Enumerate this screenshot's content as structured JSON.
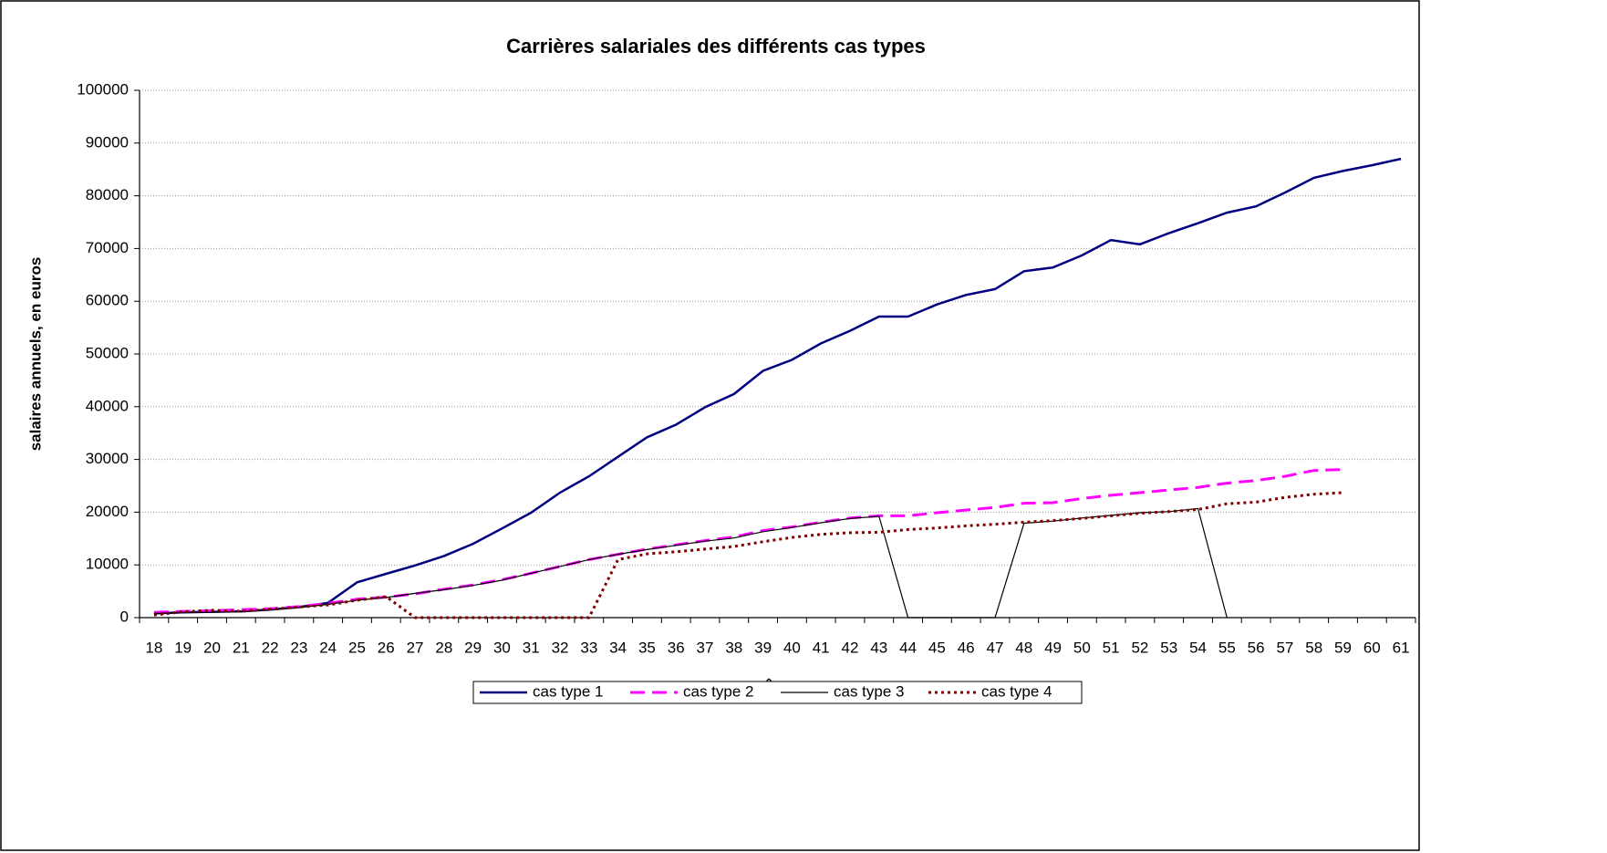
{
  "chart_data": {
    "type": "line",
    "title": "Carrières salariales des différents cas types",
    "xlabel": "âge",
    "ylabel": "salaires annuels, en euros",
    "categories": [
      18,
      19,
      20,
      21,
      22,
      23,
      24,
      25,
      26,
      27,
      28,
      29,
      30,
      31,
      32,
      33,
      34,
      35,
      36,
      37,
      38,
      39,
      40,
      41,
      42,
      43,
      44,
      45,
      46,
      47,
      48,
      49,
      50,
      51,
      52,
      53,
      54,
      55,
      56,
      57,
      58,
      59,
      60,
      61
    ],
    "series": [
      {
        "name": "cas type 1",
        "color": "#000080",
        "style": "solid",
        "width": 2.5,
        "values": [
          800,
          1000,
          1100,
          1200,
          1500,
          2000,
          2800,
          6700,
          8300,
          9900,
          11700,
          14000,
          16900,
          19900,
          23700,
          26800,
          30500,
          34200,
          36600,
          39900,
          42400,
          46800,
          48900,
          52000,
          54400,
          57100,
          57100,
          59400,
          61200,
          62300,
          65700,
          66400,
          68700,
          71600,
          70800,
          72900,
          74800,
          76800,
          78000,
          80600,
          83400,
          84700,
          85800,
          87000
        ]
      },
      {
        "name": "cas type 2",
        "color": "#ff00ff",
        "style": "dashed",
        "width": 3,
        "values": [
          1000,
          1200,
          1300,
          1500,
          1700,
          2100,
          2700,
          3500,
          3900,
          4500,
          5400,
          6200,
          7200,
          8400,
          9700,
          11000,
          12000,
          13000,
          13800,
          14600,
          15300,
          16500,
          17200,
          18100,
          18900,
          19300,
          19300,
          19900,
          20400,
          20900,
          21700,
          21800,
          22600,
          23200,
          23700,
          24200,
          24700,
          25500,
          26000,
          26800,
          27900,
          28100,
          null,
          null
        ]
      },
      {
        "name": "cas type 3",
        "color": "#000000",
        "style": "solid",
        "width": 1.2,
        "values": [
          800,
          1000,
          1000,
          1100,
          1500,
          1900,
          2500,
          3300,
          3800,
          4600,
          5300,
          6100,
          7100,
          8400,
          9700,
          11000,
          12000,
          12900,
          13700,
          14500,
          15100,
          16300,
          17100,
          18000,
          18800,
          19200,
          0,
          0,
          0,
          0,
          17900,
          18300,
          18900,
          19400,
          19900,
          20100,
          20700,
          0,
          null,
          null,
          null,
          null,
          null,
          null
        ]
      },
      {
        "name": "cas type 4",
        "color": "#800000",
        "style": "dotted",
        "width": 3,
        "values": [
          500,
          1100,
          1400,
          1200,
          1600,
          2000,
          2400,
          3300,
          4000,
          0,
          0,
          0,
          0,
          0,
          0,
          0,
          11000,
          12100,
          12500,
          13000,
          13500,
          14400,
          15200,
          15800,
          16100,
          16200,
          16700,
          17000,
          17400,
          17700,
          18100,
          18400,
          18800,
          19300,
          19800,
          20100,
          20500,
          21600,
          21900,
          22800,
          23400,
          23700,
          null,
          null
        ]
      }
    ],
    "ylim": [
      0,
      100000
    ],
    "yticks": [
      0,
      10000,
      20000,
      30000,
      40000,
      50000,
      60000,
      70000,
      80000,
      90000,
      100000
    ],
    "grid": true,
    "legend": "bottom"
  }
}
